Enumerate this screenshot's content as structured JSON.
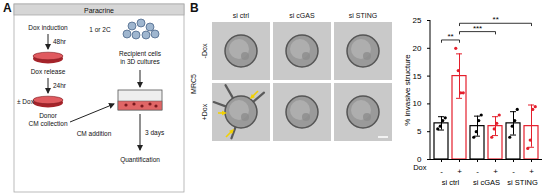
{
  "panel_a": {
    "label": "A",
    "header": "Paracrine",
    "donor": {
      "induction": "Dox induction",
      "induction_time": "48hr",
      "release": "Dox release",
      "release_time": "24hr",
      "treatment": "± Dox",
      "collection": [
        "Donor",
        "CM collection"
      ]
    },
    "recipient": {
      "passage": "1 or 2C",
      "cells": [
        "Recipient cells",
        "in 3D cultures"
      ],
      "addition": "CM addition",
      "duration": "3 days",
      "readout": "Quantification"
    }
  },
  "panel_b": {
    "label": "B",
    "cell_line": "MRC5",
    "columns": [
      "si ctrl",
      "si cGAS",
      "si STING"
    ],
    "rows": [
      "-Dox",
      "+Dox"
    ]
  },
  "chart_data": {
    "type": "bar",
    "y_label": "% invasive structure",
    "row_label": "Dox",
    "categories": [
      "-",
      "+",
      "-",
      "+",
      "-",
      "+"
    ],
    "groups": [
      "si ctrl",
      "si cGAS",
      "si STING"
    ],
    "values": [
      6.5,
      15,
      6,
      6,
      6.5,
      6
    ],
    "errors": [
      1.2,
      4,
      1.8,
      1.7,
      2.1,
      3.8
    ],
    "points": [
      [
        5.5,
        6,
        7,
        7.5
      ],
      [
        20,
        16,
        12,
        12
      ],
      [
        4,
        5,
        7,
        8
      ],
      [
        4,
        5.5,
        6.5,
        8
      ],
      [
        4,
        6,
        7,
        9
      ],
      [
        2,
        3.5,
        9,
        9.5
      ]
    ],
    "colors": [
      "#000000",
      "#e41f2c",
      "#000000",
      "#e41f2c",
      "#000000",
      "#e41f2c"
    ],
    "ylim": [
      0,
      25
    ],
    "yticks": [
      0,
      5,
      10,
      15,
      20,
      25
    ],
    "significance": [
      {
        "from": 0,
        "to": 1,
        "label": "**"
      },
      {
        "from": 1,
        "to": 3,
        "label": "***"
      },
      {
        "from": 1,
        "to": 5,
        "label": "**"
      }
    ]
  }
}
